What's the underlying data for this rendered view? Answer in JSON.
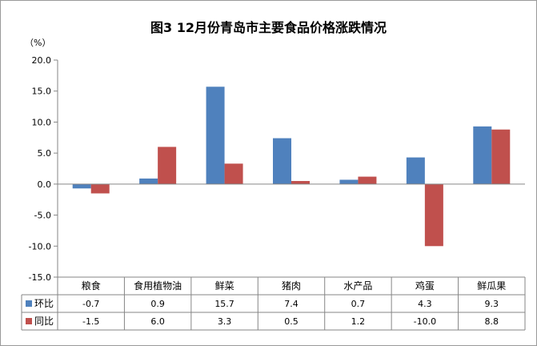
{
  "chart_data": {
    "type": "bar",
    "title": "图3   12月份青岛市主要食品价格涨跌情况",
    "unit_label": "（%）",
    "categories": [
      "粮食",
      "食用植物油",
      "鲜菜",
      "猪肉",
      "水产品",
      "鸡蛋",
      "鲜瓜果"
    ],
    "series": [
      {
        "name": "环比",
        "color": "#4f81bd",
        "values": [
          -0.7,
          0.9,
          15.7,
          7.4,
          0.7,
          4.3,
          9.3
        ]
      },
      {
        "name": "同比",
        "color": "#c0504d",
        "values": [
          -1.5,
          6.0,
          3.3,
          0.5,
          1.2,
          -10.0,
          8.8
        ]
      }
    ],
    "ylim": [
      -15,
      20
    ],
    "yticks": [
      20,
      15,
      10,
      5,
      0,
      -5,
      -10,
      -15
    ],
    "grid": false,
    "legend": "data-table",
    "data_table": true
  }
}
